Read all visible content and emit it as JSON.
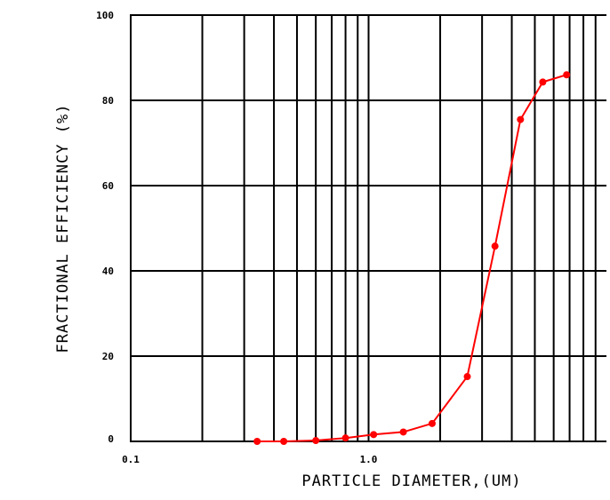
{
  "chart_data": {
    "type": "line",
    "title": "",
    "xlabel": "PARTICLE DIAMETER,(UM)",
    "ylabel": "FRACTIONAL EFFICIENCY (%)",
    "x_scale": "log",
    "xlim": [
      0.1,
      10
    ],
    "ylim": [
      0,
      100
    ],
    "grid": true,
    "x_tick_labels": [
      "0.1",
      "1.0"
    ],
    "y_tick_labels": [
      "0",
      "20",
      "40",
      "60",
      "80",
      "100"
    ],
    "series": [
      {
        "color": "#ff0000",
        "marker": "circle",
        "x": [
          0.34,
          0.44,
          0.6,
          0.8,
          1.05,
          1.4,
          1.85,
          2.6,
          3.4,
          4.35,
          5.4,
          6.8
        ],
        "y": [
          0,
          0,
          0.2,
          0.8,
          1.6,
          2.2,
          4.2,
          15.2,
          45.8,
          75.5,
          84.3,
          86
        ]
      }
    ]
  }
}
